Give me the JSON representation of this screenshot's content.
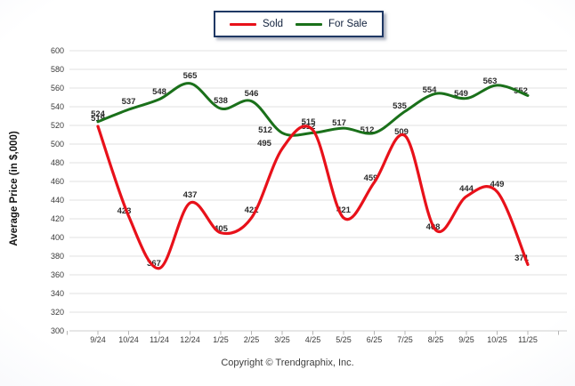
{
  "legend": {
    "items": [
      {
        "label": "Sold",
        "color": "#e8111a"
      },
      {
        "label": "For Sale",
        "color": "#1a701a"
      }
    ]
  },
  "y_axis_title": "Average Price (in $,000)",
  "footer_text": "Copyright © Trendgraphix, Inc.",
  "chart_data": {
    "type": "line",
    "title": "",
    "xlabel": "",
    "ylabel": "Average Price (in $,000)",
    "categories": [
      "9/24",
      "10/24",
      "11/24",
      "12/24",
      "1/25",
      "2/25",
      "3/25",
      "4/25",
      "5/25",
      "6/25",
      "7/25",
      "8/25",
      "9/25",
      "10/25",
      "11/25"
    ],
    "series": [
      {
        "name": "Sold",
        "color": "#e8111a",
        "values": [
          519,
          423,
          367,
          437,
          405,
          421,
          495,
          515,
          421,
          459,
          509,
          408,
          444,
          449,
          371
        ]
      },
      {
        "name": "For Sale",
        "color": "#1a701a",
        "values": [
          524,
          537,
          548,
          565,
          538,
          546,
          512,
          512,
          517,
          512,
          535,
          554,
          549,
          563,
          552
        ]
      }
    ],
    "ylim": [
      300,
      600
    ],
    "ytick_step": 20,
    "grid": true,
    "legend_position": "top-center",
    "data_labels": true
  }
}
